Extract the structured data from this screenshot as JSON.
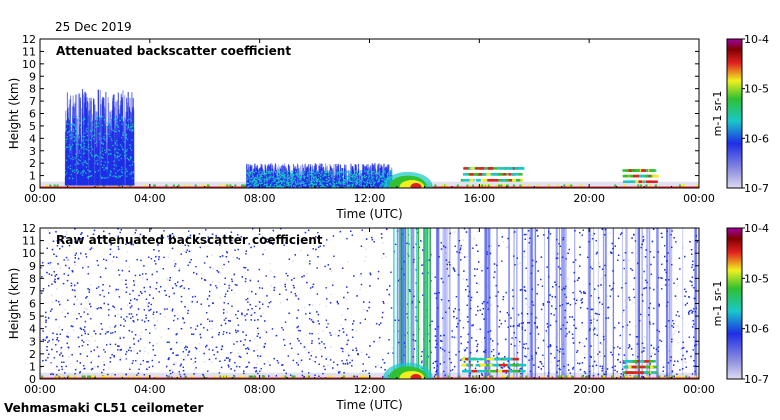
{
  "header": {
    "date": "25 Dec 2019"
  },
  "footer": {
    "instrument": "Vehmasmaki CL51 ceilometer"
  },
  "colors": {
    "low": "#dcdcf0",
    "blue": "#1e2ee6",
    "cyan": "#18c8c8",
    "green": "#30c030",
    "yellow": "#f0f020",
    "red": "#e02020",
    "darkred": "#800000",
    "purple": "#a000a0"
  },
  "chart_data": [
    {
      "type": "heatmap",
      "title": "Attenuated backscatter coefficient",
      "xlabel": "Time (UTC)",
      "ylabel": "Height (km)",
      "xticks": [
        "00:00",
        "04:00",
        "08:00",
        "12:00",
        "16:00",
        "20:00",
        "00:00"
      ],
      "yticks": [
        "0",
        "1",
        "2",
        "3",
        "4",
        "5",
        "6",
        "7",
        "8",
        "9",
        "10",
        "11",
        "12"
      ],
      "xlim_hours": [
        0,
        24
      ],
      "ylim_km": [
        0,
        12
      ],
      "colorbar": {
        "ticks": [
          "10-7",
          "10-6",
          "10-5",
          "10-4"
        ],
        "unit_label": "m-1 sr-1",
        "scale": "log",
        "range": [
          1e-07,
          0.0001
        ]
      },
      "features": [
        {
          "t0": 0.0,
          "t1": 24.0,
          "h0": 0.0,
          "h1": 0.12,
          "level": "red"
        },
        {
          "t0": 0.9,
          "t1": 3.4,
          "h0": 0.8,
          "h1": 8.0,
          "level": "blue",
          "kind": "column"
        },
        {
          "t0": 7.5,
          "t1": 12.8,
          "h0": 0.1,
          "h1": 2.0,
          "level": "blue",
          "kind": "column"
        },
        {
          "t0": 12.5,
          "t1": 14.3,
          "h0": 0.1,
          "h1": 1.3,
          "level": "green",
          "kind": "blob"
        },
        {
          "t0": 15.3,
          "t1": 17.5,
          "h0": 0.4,
          "h1": 2.0,
          "level": "cyan",
          "kind": "layer"
        },
        {
          "t0": 21.2,
          "t1": 22.3,
          "h0": 0.3,
          "h1": 1.8,
          "level": "cyan",
          "kind": "layer"
        }
      ]
    },
    {
      "type": "heatmap",
      "title": "Raw attenuated backscatter coefficient",
      "xlabel": "Time (UTC)",
      "ylabel": "Height (km)",
      "xticks": [
        "00:00",
        "04:00",
        "08:00",
        "12:00",
        "16:00",
        "20:00",
        "00:00"
      ],
      "yticks": [
        "0",
        "1",
        "2",
        "3",
        "4",
        "5",
        "6",
        "7",
        "8",
        "9",
        "10",
        "11",
        "12"
      ],
      "xlim_hours": [
        0,
        24
      ],
      "ylim_km": [
        0,
        12
      ],
      "colorbar": {
        "ticks": [
          "10-7",
          "10-6",
          "10-5",
          "10-4"
        ],
        "unit_label": "m-1 sr-1",
        "scale": "log",
        "range": [
          1e-07,
          0.0001
        ]
      },
      "features": [
        {
          "t0": 0.0,
          "t1": 24.0,
          "h0": 0.0,
          "h1": 12.0,
          "level": "blue",
          "kind": "noise"
        },
        {
          "t0": 0.0,
          "t1": 24.0,
          "h0": 0.0,
          "h1": 0.12,
          "level": "red"
        },
        {
          "t0": 12.8,
          "t1": 14.2,
          "h0": 0.0,
          "h1": 12.0,
          "level": "green",
          "kind": "streaks"
        },
        {
          "t0": 12.5,
          "t1": 14.3,
          "h0": 0.1,
          "h1": 1.3,
          "level": "green",
          "kind": "blob"
        },
        {
          "t0": 15.3,
          "t1": 17.5,
          "h0": 0.4,
          "h1": 2.0,
          "level": "cyan",
          "kind": "layer"
        },
        {
          "t0": 21.2,
          "t1": 22.3,
          "h0": 0.3,
          "h1": 1.8,
          "level": "cyan",
          "kind": "layer"
        }
      ]
    }
  ]
}
